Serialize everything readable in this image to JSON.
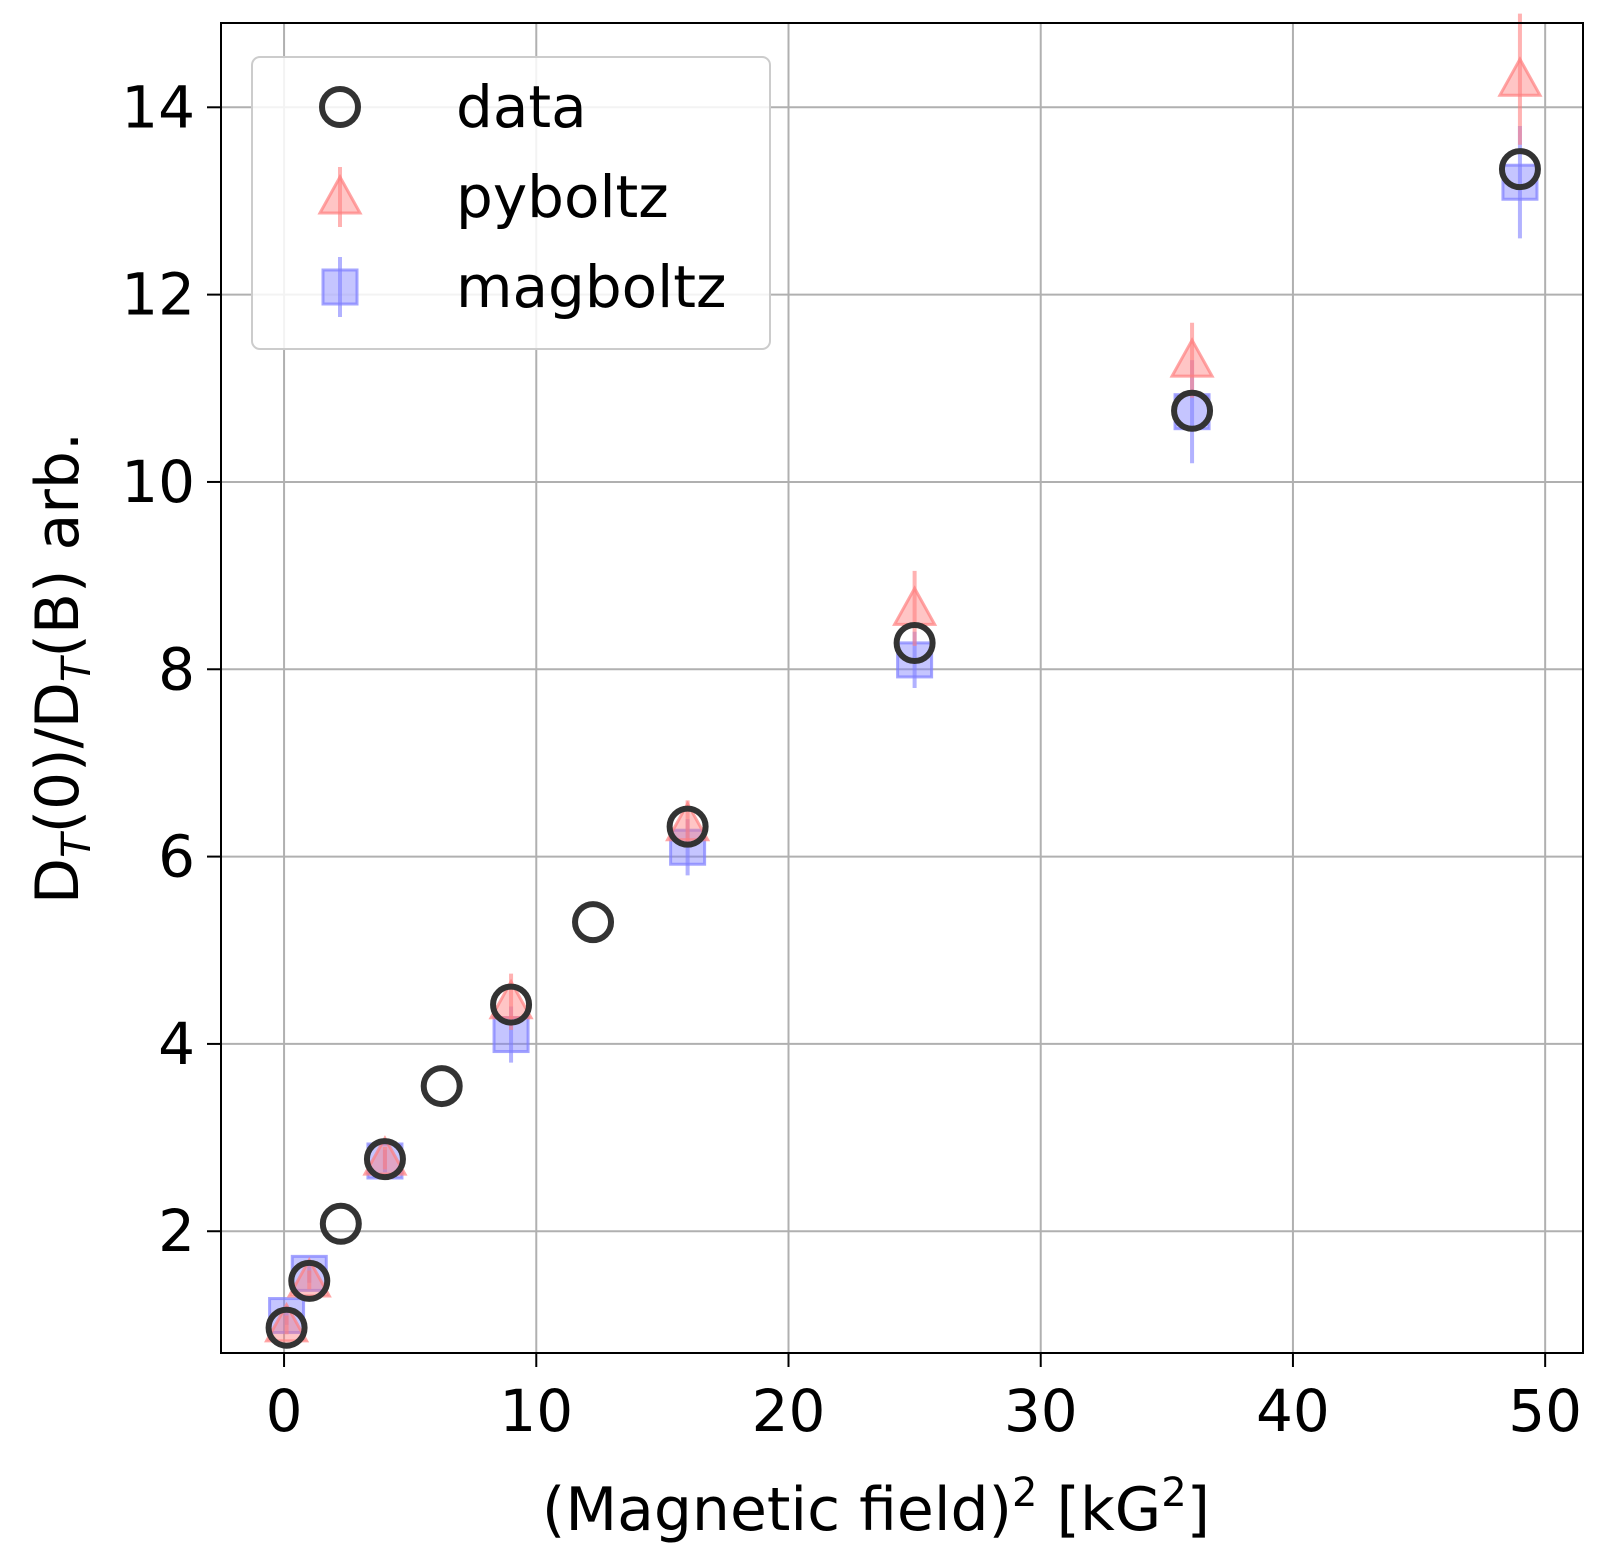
{
  "chart_data": {
    "type": "scatter",
    "title": "",
    "xlabel": {
      "main": "(Magnetic field)",
      "sup1": "2",
      "mid": " [kG",
      "sup2": "2",
      "end": "]"
    },
    "ylabel": {
      "p1": "D",
      "s1": "T",
      "p2": "(0)/D",
      "s2": "T",
      "p3": "(B) arb."
    },
    "xlim": [
      -2.5,
      51.5
    ],
    "ylim": [
      0.7,
      14.9
    ],
    "xticks": [
      0,
      10,
      20,
      30,
      40,
      50
    ],
    "yticks": [
      2,
      4,
      6,
      8,
      10,
      12,
      14
    ],
    "grid": true,
    "legend_position": "top-left",
    "series": [
      {
        "name": "data",
        "marker": "circle-open",
        "color": "#333333",
        "x": [
          0.1,
          1,
          2.25,
          4,
          6.25,
          9,
          12.25,
          16,
          25,
          36,
          49
        ],
        "y": [
          0.97,
          1.47,
          2.08,
          2.77,
          3.55,
          4.42,
          5.3,
          6.32,
          8.28,
          10.76,
          13.34
        ],
        "yerr": [
          0,
          0,
          0,
          0,
          0,
          0,
          0,
          0,
          0,
          0,
          0
        ]
      },
      {
        "name": "pyboltz",
        "marker": "triangle",
        "color": "#ff7f7f",
        "x": [
          0.1,
          1,
          4,
          9,
          16,
          25,
          36,
          49
        ],
        "y": [
          1.0,
          1.48,
          2.78,
          4.45,
          6.35,
          8.65,
          11.3,
          14.3
        ],
        "yerr": [
          0.1,
          0.1,
          0.12,
          0.3,
          0.25,
          0.4,
          0.4,
          0.7
        ]
      },
      {
        "name": "magboltz",
        "marker": "square",
        "color": "#7f7fff",
        "x": [
          0.1,
          1,
          4,
          9,
          16,
          25,
          36,
          49
        ],
        "y": [
          1.1,
          1.55,
          2.75,
          4.1,
          6.1,
          8.1,
          10.75,
          13.2
        ],
        "yerr": [
          0.1,
          0.1,
          0.12,
          0.3,
          0.3,
          0.3,
          0.55,
          0.6
        ]
      }
    ]
  }
}
